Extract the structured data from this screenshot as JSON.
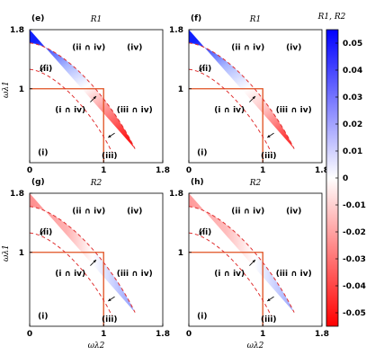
{
  "chart_data": [
    {
      "type": "heatmap",
      "panel": "(e)",
      "title": "R1",
      "xlabel": "",
      "ylabel": "ωλ1",
      "xlim": [
        0,
        1.8
      ],
      "ylim": [
        0,
        1.8
      ],
      "x_ticks": [
        "0",
        "1",
        "1.8"
      ],
      "y_ticks": [
        "1",
        "1.8"
      ],
      "pattern": "diagonal",
      "region_labels": [
        "(i)",
        "(ii)",
        "(iii)",
        "(iv)",
        "(i ∩ iv)",
        "(ii ∩ iv)",
        "(iii ∩ iv)"
      ]
    },
    {
      "type": "heatmap",
      "panel": "(f)",
      "title": "R1",
      "xlabel": "",
      "ylabel": "",
      "xlim": [
        0,
        1.8
      ],
      "ylim": [
        0,
        1.8
      ],
      "x_ticks": [
        "0",
        "1",
        "1.8"
      ],
      "y_ticks": [
        "1",
        "1.8"
      ],
      "pattern": "diagonal-weak",
      "region_labels": [
        "(i)",
        "(ii)",
        "(iii)",
        "(iv)",
        "(i ∩ iv)",
        "(ii ∩ iv)",
        "(iii ∩ iv)"
      ]
    },
    {
      "type": "heatmap",
      "panel": "(g)",
      "title": "R2",
      "xlabel": "ωλ2",
      "ylabel": "ωλ1",
      "xlim": [
        0,
        1.8
      ],
      "ylim": [
        0,
        1.8
      ],
      "x_ticks": [
        "0",
        "1",
        "1.8"
      ],
      "y_ticks": [
        "1",
        "1.8"
      ],
      "pattern": "horizontal",
      "region_labels": [
        "(i)",
        "(ii)",
        "(iii)",
        "(iv)",
        "(i ∩ iv)",
        "(ii ∩ iv)",
        "(iii ∩ iv)"
      ]
    },
    {
      "type": "heatmap",
      "panel": "(h)",
      "title": "R2",
      "xlabel": "ωλ2",
      "ylabel": "",
      "xlim": [
        0,
        1.8
      ],
      "ylim": [
        0,
        1.8
      ],
      "x_ticks": [
        "0",
        "1",
        "1.8"
      ],
      "y_ticks": [
        "1",
        "1.8"
      ],
      "pattern": "horizontal-weak",
      "region_labels": [
        "(i)",
        "(ii)",
        "(iii)",
        "(iv)",
        "(i ∩ iv)",
        "(ii ∩ iv)",
        "(iii ∩ iv)"
      ]
    }
  ],
  "colorbar": {
    "label": "R1, R2",
    "min": -0.055,
    "max": 0.055,
    "ticks": [
      "0.05",
      "0.04",
      "0.03",
      "0.02",
      "0.01",
      "0",
      "-0.01",
      "-0.02",
      "-0.03",
      "-0.04",
      "-0.05"
    ],
    "tick_values": [
      0.05,
      0.04,
      0.03,
      0.02,
      0.01,
      0,
      -0.01,
      -0.02,
      -0.03,
      -0.04,
      -0.05
    ],
    "colormap": "bwr",
    "color_positive": "#0000ff",
    "color_zero": "#ffffff",
    "color_negative": "#ff0000"
  },
  "line_colors": {
    "boundary": "#e05020",
    "dashed": "#e03030"
  }
}
